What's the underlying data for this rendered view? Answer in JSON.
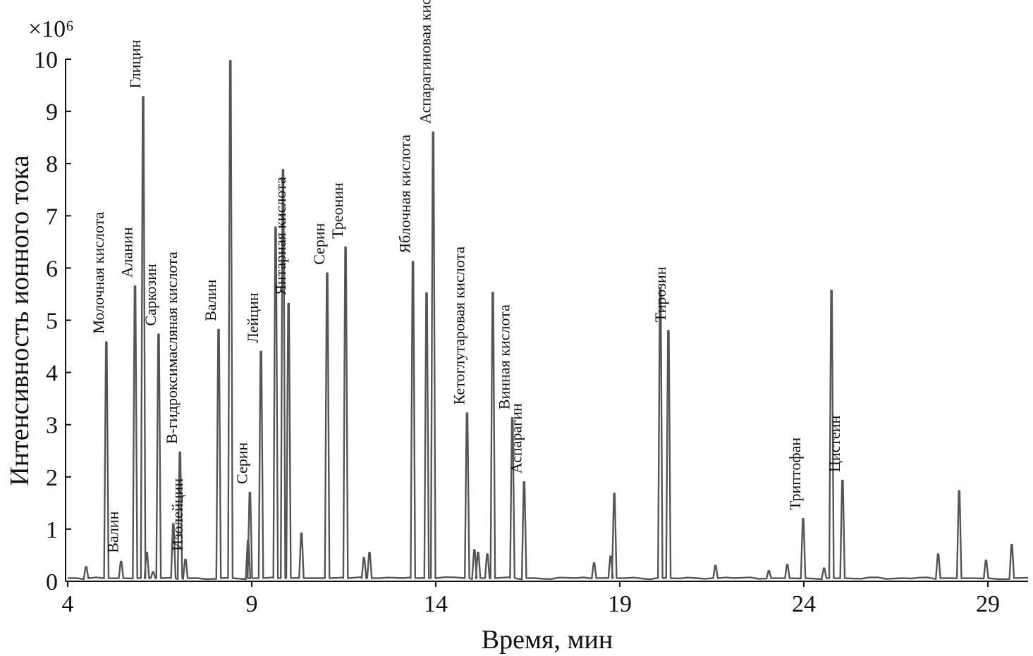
{
  "chart_data": {
    "type": "line",
    "xlabel": "Время, мин",
    "ylabel": "Интенсивность ионного тока",
    "y_multiplier": "×10⁶",
    "xlim": [
      4,
      30
    ],
    "ylim": [
      0,
      10
    ],
    "x_ticks": [
      4,
      9,
      14,
      19,
      24,
      29
    ],
    "y_ticks": [
      0,
      1,
      2,
      3,
      4,
      5,
      6,
      7,
      8,
      9,
      10
    ],
    "grid": false,
    "legend": "none",
    "line_color": "#555555",
    "peaks": [
      {
        "x": 4.5,
        "y": 0.28
      },
      {
        "x": 5.05,
        "y": 4.58
      },
      {
        "x": 5.45,
        "y": 0.38
      },
      {
        "x": 5.83,
        "y": 5.65
      },
      {
        "x": 6.05,
        "y": 9.28
      },
      {
        "x": 6.15,
        "y": 0.55
      },
      {
        "x": 6.32,
        "y": 0.18
      },
      {
        "x": 6.47,
        "y": 4.73
      },
      {
        "x": 6.87,
        "y": 1.1
      },
      {
        "x": 7.05,
        "y": 2.47
      },
      {
        "x": 7.2,
        "y": 0.42
      },
      {
        "x": 8.1,
        "y": 4.82
      },
      {
        "x": 8.42,
        "y": 9.97
      },
      {
        "x": 8.9,
        "y": 0.78
      },
      {
        "x": 8.95,
        "y": 1.7
      },
      {
        "x": 9.25,
        "y": 4.4
      },
      {
        "x": 9.65,
        "y": 6.78
      },
      {
        "x": 9.85,
        "y": 7.88
      },
      {
        "x": 10.0,
        "y": 5.32
      },
      {
        "x": 10.35,
        "y": 0.92
      },
      {
        "x": 11.05,
        "y": 5.9
      },
      {
        "x": 11.55,
        "y": 6.4
      },
      {
        "x": 12.05,
        "y": 0.45
      },
      {
        "x": 12.2,
        "y": 0.55
      },
      {
        "x": 13.38,
        "y": 6.12
      },
      {
        "x": 13.75,
        "y": 5.52
      },
      {
        "x": 13.93,
        "y": 8.6
      },
      {
        "x": 14.85,
        "y": 3.22
      },
      {
        "x": 15.05,
        "y": 0.6
      },
      {
        "x": 15.15,
        "y": 0.55
      },
      {
        "x": 15.4,
        "y": 0.52
      },
      {
        "x": 15.55,
        "y": 5.53
      },
      {
        "x": 16.08,
        "y": 3.13
      },
      {
        "x": 16.4,
        "y": 1.9
      },
      {
        "x": 18.3,
        "y": 0.35
      },
      {
        "x": 18.75,
        "y": 0.48
      },
      {
        "x": 18.85,
        "y": 1.68
      },
      {
        "x": 20.1,
        "y": 5.62
      },
      {
        "x": 20.32,
        "y": 4.8
      },
      {
        "x": 21.6,
        "y": 0.3
      },
      {
        "x": 23.05,
        "y": 0.2
      },
      {
        "x": 23.55,
        "y": 0.32
      },
      {
        "x": 23.98,
        "y": 1.2
      },
      {
        "x": 24.55,
        "y": 0.25
      },
      {
        "x": 24.75,
        "y": 5.57
      },
      {
        "x": 25.05,
        "y": 1.93
      },
      {
        "x": 27.65,
        "y": 0.52
      },
      {
        "x": 28.22,
        "y": 1.73
      },
      {
        "x": 28.95,
        "y": 0.4
      },
      {
        "x": 29.65,
        "y": 0.7
      }
    ],
    "annotations": [
      {
        "label": "Молочная кислота",
        "x": 5.05,
        "y": 4.58
      },
      {
        "label": "Валин",
        "x": 5.45,
        "y": 0.38
      },
      {
        "label": "Аланин",
        "x": 5.83,
        "y": 5.65
      },
      {
        "label": "Глицин",
        "x": 6.05,
        "y": 9.28
      },
      {
        "label": "Саркозин",
        "x": 6.47,
        "y": 4.73
      },
      {
        "label": "В-гидроксимасляная кислота",
        "x": 7.05,
        "y": 2.47
      },
      {
        "label": "Изолейцин",
        "x": 7.2,
        "y": 0.42
      },
      {
        "label": "Валин",
        "x": 8.1,
        "y": 4.82
      },
      {
        "label": "Серин",
        "x": 8.95,
        "y": 1.7
      },
      {
        "label": "Лейцин",
        "x": 9.25,
        "y": 4.4
      },
      {
        "label": "Янтарная кислота",
        "x": 10.0,
        "y": 5.32
      },
      {
        "label": "Серин",
        "x": 11.05,
        "y": 5.9
      },
      {
        "label": "Треонин",
        "x": 11.55,
        "y": 6.4
      },
      {
        "label": "Яблочная кислота",
        "x": 13.38,
        "y": 6.12
      },
      {
        "label": "Аспарагиновая кислота",
        "x": 13.93,
        "y": 8.6
      },
      {
        "label": "Кетоглутаровая кислота",
        "x": 14.85,
        "y": 3.22
      },
      {
        "label": "Винная кислота",
        "x": 16.08,
        "y": 3.13
      },
      {
        "label": "Аспарагин",
        "x": 16.4,
        "y": 1.9
      },
      {
        "label": "Тирозин",
        "x": 20.32,
        "y": 4.8
      },
      {
        "label": "Триптофан",
        "x": 23.98,
        "y": 1.2
      },
      {
        "label": "Цистеин",
        "x": 25.05,
        "y": 1.93
      }
    ]
  }
}
